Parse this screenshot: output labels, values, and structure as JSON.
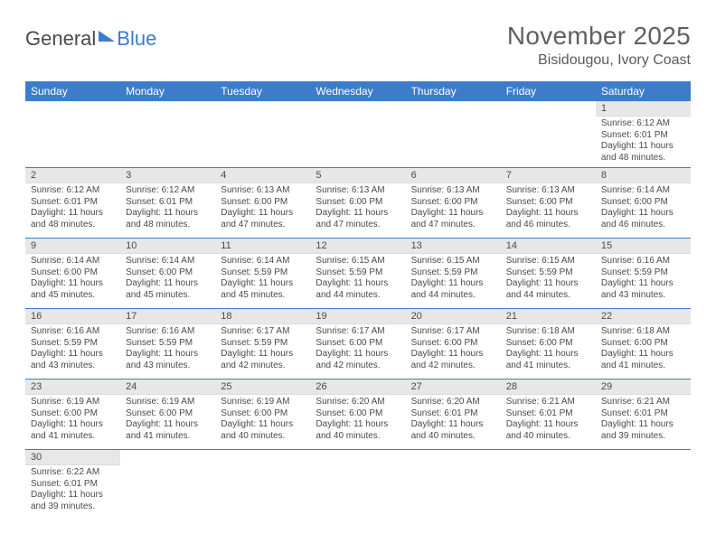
{
  "logo": {
    "part1": "General",
    "part2": "Blue"
  },
  "title": {
    "month": "November 2025",
    "location": "Bisidougou, Ivory Coast"
  },
  "colors": {
    "header_bg": "#3d7cc9",
    "header_fg": "#ffffff",
    "daynum_bg": "#e7e7e7",
    "row_border": "#3d7cc9",
    "text": "#4a4a4a",
    "page_bg": "#ffffff"
  },
  "fonts": {
    "title_size_pt": 21,
    "location_size_pt": 12,
    "weekday_size_pt": 9,
    "daynum_size_pt": 8,
    "body_size_pt": 7.5
  },
  "weekdays": [
    "Sunday",
    "Monday",
    "Tuesday",
    "Wednesday",
    "Thursday",
    "Friday",
    "Saturday"
  ],
  "weeks": [
    [
      null,
      null,
      null,
      null,
      null,
      null,
      {
        "n": "1",
        "sunrise": "6:12 AM",
        "sunset": "6:01 PM",
        "daylight": "11 hours and 48 minutes."
      }
    ],
    [
      {
        "n": "2",
        "sunrise": "6:12 AM",
        "sunset": "6:01 PM",
        "daylight": "11 hours and 48 minutes."
      },
      {
        "n": "3",
        "sunrise": "6:12 AM",
        "sunset": "6:01 PM",
        "daylight": "11 hours and 48 minutes."
      },
      {
        "n": "4",
        "sunrise": "6:13 AM",
        "sunset": "6:00 PM",
        "daylight": "11 hours and 47 minutes."
      },
      {
        "n": "5",
        "sunrise": "6:13 AM",
        "sunset": "6:00 PM",
        "daylight": "11 hours and 47 minutes."
      },
      {
        "n": "6",
        "sunrise": "6:13 AM",
        "sunset": "6:00 PM",
        "daylight": "11 hours and 47 minutes."
      },
      {
        "n": "7",
        "sunrise": "6:13 AM",
        "sunset": "6:00 PM",
        "daylight": "11 hours and 46 minutes."
      },
      {
        "n": "8",
        "sunrise": "6:14 AM",
        "sunset": "6:00 PM",
        "daylight": "11 hours and 46 minutes."
      }
    ],
    [
      {
        "n": "9",
        "sunrise": "6:14 AM",
        "sunset": "6:00 PM",
        "daylight": "11 hours and 45 minutes."
      },
      {
        "n": "10",
        "sunrise": "6:14 AM",
        "sunset": "6:00 PM",
        "daylight": "11 hours and 45 minutes."
      },
      {
        "n": "11",
        "sunrise": "6:14 AM",
        "sunset": "5:59 PM",
        "daylight": "11 hours and 45 minutes."
      },
      {
        "n": "12",
        "sunrise": "6:15 AM",
        "sunset": "5:59 PM",
        "daylight": "11 hours and 44 minutes."
      },
      {
        "n": "13",
        "sunrise": "6:15 AM",
        "sunset": "5:59 PM",
        "daylight": "11 hours and 44 minutes."
      },
      {
        "n": "14",
        "sunrise": "6:15 AM",
        "sunset": "5:59 PM",
        "daylight": "11 hours and 44 minutes."
      },
      {
        "n": "15",
        "sunrise": "6:16 AM",
        "sunset": "5:59 PM",
        "daylight": "11 hours and 43 minutes."
      }
    ],
    [
      {
        "n": "16",
        "sunrise": "6:16 AM",
        "sunset": "5:59 PM",
        "daylight": "11 hours and 43 minutes."
      },
      {
        "n": "17",
        "sunrise": "6:16 AM",
        "sunset": "5:59 PM",
        "daylight": "11 hours and 43 minutes."
      },
      {
        "n": "18",
        "sunrise": "6:17 AM",
        "sunset": "5:59 PM",
        "daylight": "11 hours and 42 minutes."
      },
      {
        "n": "19",
        "sunrise": "6:17 AM",
        "sunset": "6:00 PM",
        "daylight": "11 hours and 42 minutes."
      },
      {
        "n": "20",
        "sunrise": "6:17 AM",
        "sunset": "6:00 PM",
        "daylight": "11 hours and 42 minutes."
      },
      {
        "n": "21",
        "sunrise": "6:18 AM",
        "sunset": "6:00 PM",
        "daylight": "11 hours and 41 minutes."
      },
      {
        "n": "22",
        "sunrise": "6:18 AM",
        "sunset": "6:00 PM",
        "daylight": "11 hours and 41 minutes."
      }
    ],
    [
      {
        "n": "23",
        "sunrise": "6:19 AM",
        "sunset": "6:00 PM",
        "daylight": "11 hours and 41 minutes."
      },
      {
        "n": "24",
        "sunrise": "6:19 AM",
        "sunset": "6:00 PM",
        "daylight": "11 hours and 41 minutes."
      },
      {
        "n": "25",
        "sunrise": "6:19 AM",
        "sunset": "6:00 PM",
        "daylight": "11 hours and 40 minutes."
      },
      {
        "n": "26",
        "sunrise": "6:20 AM",
        "sunset": "6:00 PM",
        "daylight": "11 hours and 40 minutes."
      },
      {
        "n": "27",
        "sunrise": "6:20 AM",
        "sunset": "6:01 PM",
        "daylight": "11 hours and 40 minutes."
      },
      {
        "n": "28",
        "sunrise": "6:21 AM",
        "sunset": "6:01 PM",
        "daylight": "11 hours and 40 minutes."
      },
      {
        "n": "29",
        "sunrise": "6:21 AM",
        "sunset": "6:01 PM",
        "daylight": "11 hours and 39 minutes."
      }
    ],
    [
      {
        "n": "30",
        "sunrise": "6:22 AM",
        "sunset": "6:01 PM",
        "daylight": "11 hours and 39 minutes."
      },
      null,
      null,
      null,
      null,
      null,
      null
    ]
  ],
  "labels": {
    "sunrise": "Sunrise:",
    "sunset": "Sunset:",
    "daylight": "Daylight:"
  }
}
